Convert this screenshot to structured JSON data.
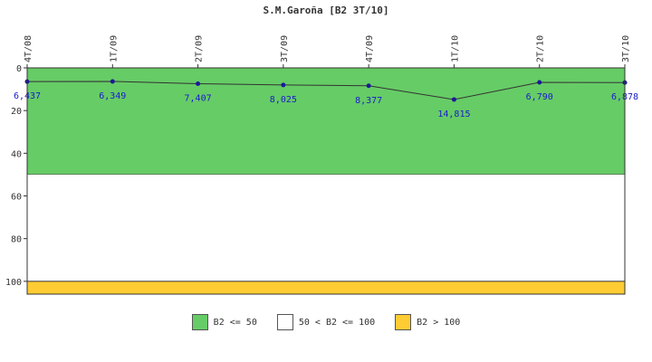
{
  "chart_data": {
    "type": "line",
    "title": "S.M.Garoña [B2 3T/10]",
    "categories": [
      "4T/08",
      "1T/09",
      "2T/09",
      "3T/09",
      "4T/09",
      "1T/10",
      "2T/10",
      "3T/10"
    ],
    "values": [
      6.437,
      6.349,
      7.407,
      8.025,
      8.377,
      14.815,
      6.79,
      6.878
    ],
    "value_labels": [
      "6,437",
      "6,349",
      "7,407",
      "8,025",
      "8,377",
      "14,815",
      "6,790",
      "6,878"
    ],
    "ylim": [
      0,
      106
    ],
    "y_inverted": true,
    "yticks": [
      0,
      20,
      40,
      60,
      80,
      100
    ],
    "grid": false,
    "bands": [
      {
        "label": "B2 <= 50",
        "from": 0,
        "to": 50,
        "color": "#66cc66"
      },
      {
        "label": "50 < B2 <= 100",
        "from": 50,
        "to": 100,
        "color": "#ffffff"
      },
      {
        "label": "B2 > 100",
        "from": 100,
        "to": 106,
        "color": "#ffcc33"
      }
    ],
    "line_color": "#333333",
    "marker_color": "#1a1a99",
    "label_color": "#1a1acc",
    "legend_position": "bottom"
  }
}
